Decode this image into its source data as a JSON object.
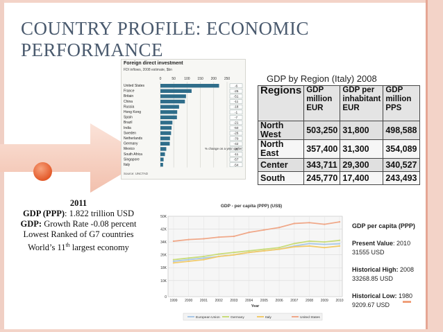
{
  "slide": {
    "title": "COUNTRY PROFILE: ECONOMIC PERFORMANCE"
  },
  "summary": {
    "year": "2011",
    "line1_label": "GDP (PPP)",
    "line1_value": ": 1.822 trillion USD",
    "line2_label": "GDP:",
    "line2_value": " Growth Rate -0.08 percent",
    "line3": "Lowest Ranked of G7 countries",
    "line4_pre": "World’s 11",
    "line4_sup": "th",
    "line4_post": " largest economy"
  },
  "fdi_chart": {
    "heading": "Foreign direct investment",
    "subheading": "FDI inflows, 2008 estimate, $bn",
    "source": "Source: UNCTAD",
    "legend": "% change on a year earlier",
    "xlim": [
      0,
      250
    ],
    "ticks": [
      "0",
      "50",
      "100",
      "150",
      "200",
      "250"
    ],
    "countries": [
      "United States",
      "France",
      "Britain",
      "China",
      "Russia",
      "Hong Kong",
      "Spain",
      "Brazil",
      "India",
      "Sweden",
      "Netherlands",
      "Germany",
      "Mexico",
      "South Africa",
      "Singapore",
      "Italy"
    ],
    "values": [
      220,
      117,
      96,
      92,
      70,
      63,
      62,
      45,
      42,
      40,
      36,
      35,
      22,
      17,
      12,
      10
    ],
    "changes": [
      "-6",
      "-25",
      "-51",
      "-11",
      "-18",
      "-1",
      "-7",
      "-21",
      "-50",
      "-26",
      "-70",
      "-42",
      "-20",
      "-11",
      "-57",
      "-54"
    ],
    "bar_color": "#2f6d8a"
  },
  "gdp_region": {
    "caption": "GDP by Region (Italy) 2008",
    "headers": [
      "Regions",
      "GDP million EUR",
      "GDP per inhabitant EUR",
      "GDP million PPS"
    ],
    "rows": [
      [
        "North West",
        "503,250",
        "31,800",
        "498,588"
      ],
      [
        "North East",
        "357,400",
        "31,300",
        "354,089"
      ],
      [
        "Center",
        "343,711",
        "29,300",
        "340,527"
      ],
      [
        "South",
        "245,770",
        "17,400",
        "243,493"
      ]
    ]
  },
  "chart_data": {
    "type": "line",
    "title": "GDP - per capita (PPP) (US$)",
    "xlabel": "Year",
    "ylabel": "",
    "x": [
      1999,
      2000,
      2001,
      2002,
      2003,
      2004,
      2005,
      2006,
      2007,
      2008,
      2009,
      2010
    ],
    "ylim": [
      0,
      50000
    ],
    "yticks": [
      "0",
      "10K",
      "18K",
      "26K",
      "34K",
      "42K",
      "50K"
    ],
    "ytick_values": [
      0,
      10000,
      18000,
      26000,
      34000,
      42000,
      50000
    ],
    "grid": true,
    "legend_position": "bottom",
    "series": [
      {
        "name": "European Union",
        "color": "#a9c8e8",
        "values": [
          22000,
          23000,
          24000,
          25000,
          26000,
          27500,
          28500,
          29500,
          31500,
          33000,
          32500,
          32900
        ]
      },
      {
        "name": "Germany",
        "color": "#c9dc7a",
        "values": [
          23000,
          24000,
          25000,
          26500,
          27500,
          28500,
          29500,
          30500,
          33000,
          34500,
          34000,
          35000
        ]
      },
      {
        "name": "Italy",
        "color": "#f2cb6a",
        "values": [
          21000,
          22000,
          23000,
          25000,
          26000,
          27500,
          28500,
          29500,
          31000,
          31500,
          30500,
          31500
        ]
      },
      {
        "name": "United States",
        "color": "#f0a889",
        "values": [
          34500,
          35500,
          36000,
          37000,
          37500,
          40000,
          41500,
          43000,
          45500,
          46000,
          45000,
          46500
        ]
      }
    ]
  },
  "gdp_stats": {
    "title": "GDP per capita (PPP)",
    "present_label": "Present Value",
    "present_value": ": 2010 31555 USD",
    "high_label": "Historical High:",
    "high_value": " 2008 33268.85  USD",
    "low_label": "Historical Low:",
    "low_value": " 1980 9209.67 USD"
  },
  "colors": {
    "accent": "#e35a2a",
    "title": "#4a5a6e",
    "arrow_fill": "#f5c9b9",
    "frame": "#f3d3c8"
  }
}
